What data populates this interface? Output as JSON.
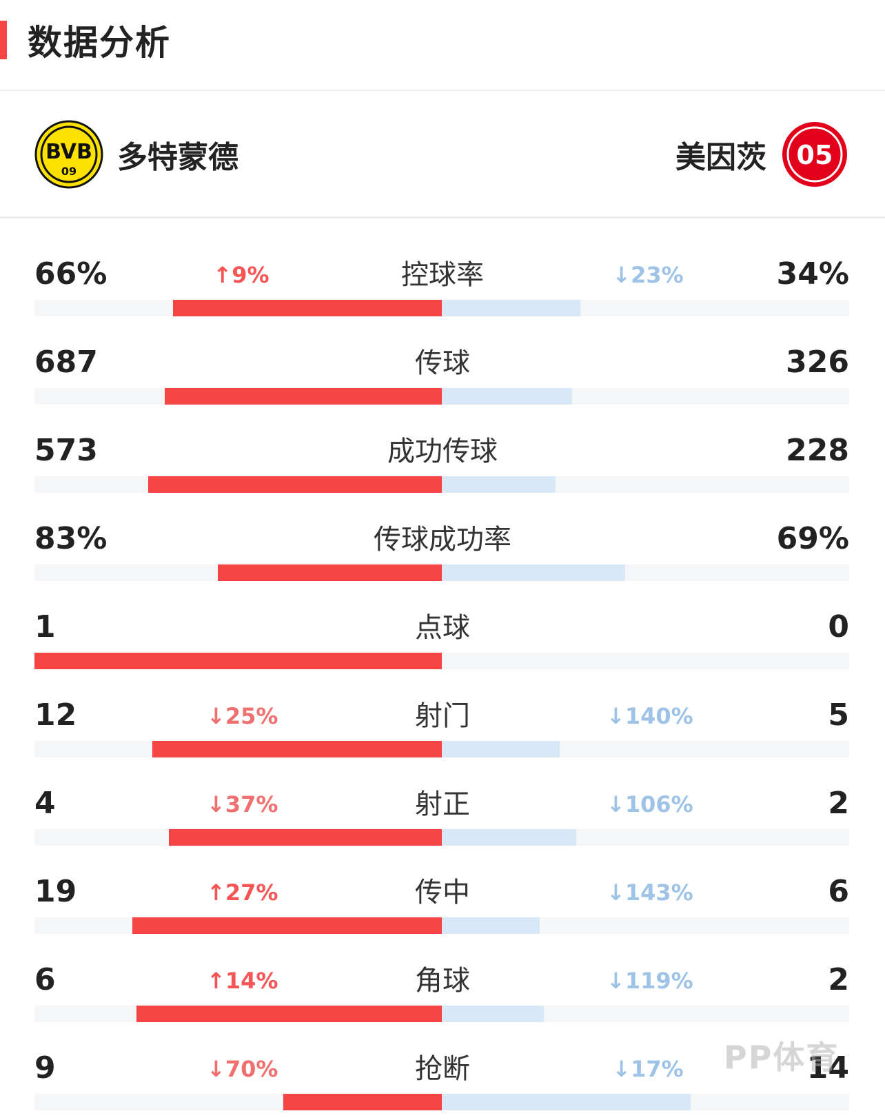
{
  "header": {
    "title": "数据分析"
  },
  "teams": {
    "home": {
      "name": "多特蒙德",
      "logo_text_top": "BVB",
      "logo_text_bottom": "09",
      "logo_color": "#FDE100"
    },
    "away": {
      "name": "美因茨",
      "logo_text": "05",
      "logo_color": "#E2001A"
    }
  },
  "stats": [
    {
      "label": "控球率",
      "home_value": "66%",
      "away_value": "34%",
      "home_delta": "↑9%",
      "home_delta_dir": "up",
      "away_delta": "↓23%",
      "away_delta_dir": "down",
      "home_share": 0.66,
      "away_share": 0.34
    },
    {
      "label": "传球",
      "home_value": "687",
      "away_value": "326",
      "home_delta": "",
      "home_delta_dir": "",
      "away_delta": "",
      "away_delta_dir": "",
      "home_share": 0.68,
      "away_share": 0.32
    },
    {
      "label": "成功传球",
      "home_value": "573",
      "away_value": "228",
      "home_delta": "",
      "home_delta_dir": "",
      "away_delta": "",
      "away_delta_dir": "",
      "home_share": 0.72,
      "away_share": 0.28
    },
    {
      "label": "传球成功率",
      "home_value": "83%",
      "away_value": "69%",
      "home_delta": "",
      "home_delta_dir": "",
      "away_delta": "",
      "away_delta_dir": "",
      "home_share": 0.55,
      "away_share": 0.45
    },
    {
      "label": "点球",
      "home_value": "1",
      "away_value": "0",
      "home_delta": "",
      "home_delta_dir": "",
      "away_delta": "",
      "away_delta_dir": "",
      "home_share": 1.0,
      "away_share": 0.0
    },
    {
      "label": "射门",
      "home_value": "12",
      "away_value": "5",
      "home_delta": "↓25%",
      "home_delta_dir": "down",
      "away_delta": "↓140%",
      "away_delta_dir": "down",
      "home_share": 0.71,
      "away_share": 0.29
    },
    {
      "label": "射正",
      "home_value": "4",
      "away_value": "2",
      "home_delta": "↓37%",
      "home_delta_dir": "down",
      "away_delta": "↓106%",
      "away_delta_dir": "down",
      "home_share": 0.67,
      "away_share": 0.33
    },
    {
      "label": "传中",
      "home_value": "19",
      "away_value": "6",
      "home_delta": "↑27%",
      "home_delta_dir": "up",
      "away_delta": "↓143%",
      "away_delta_dir": "down",
      "home_share": 0.76,
      "away_share": 0.24
    },
    {
      "label": "角球",
      "home_value": "6",
      "away_value": "2",
      "home_delta": "↑14%",
      "home_delta_dir": "up",
      "away_delta": "↓119%",
      "away_delta_dir": "down",
      "home_share": 0.75,
      "away_share": 0.25
    },
    {
      "label": "抢断",
      "home_value": "9",
      "away_value": "14",
      "home_delta": "↓70%",
      "home_delta_dir": "down",
      "away_delta": "↓17%",
      "away_delta_dir": "down",
      "home_share": 0.39,
      "away_share": 0.61
    }
  ],
  "watermark": "PP体育",
  "colors": {
    "accent": "#F44444",
    "home_bar": "#F44444",
    "away_bar": "#D9E8F6",
    "track": "#F5F6F7"
  }
}
